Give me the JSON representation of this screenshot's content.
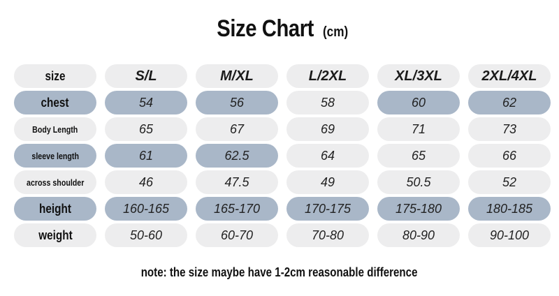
{
  "title": "Size Chart",
  "unit": "(cm)",
  "header": {
    "label": "size",
    "sizes": [
      "S/L",
      "M/XL",
      "L/2XL",
      "XL/3XL",
      "2XL/4XL"
    ]
  },
  "rows": [
    {
      "label": "chest",
      "values": [
        "54",
        "56",
        "58",
        "60",
        "62"
      ]
    },
    {
      "label": "Body Length",
      "values": [
        "65",
        "67",
        "69",
        "71",
        "73"
      ]
    },
    {
      "label": "sleeve length",
      "values": [
        "61",
        "62.5",
        "64",
        "65",
        "66"
      ]
    },
    {
      "label": "across shoulder",
      "values": [
        "46",
        "47.5",
        "49",
        "50.5",
        "52"
      ]
    },
    {
      "label": "height",
      "values": [
        "160-165",
        "165-170",
        "170-175",
        "175-180",
        "180-185"
      ]
    },
    {
      "label": "weight",
      "values": [
        "50-60",
        "60-70",
        "70-80",
        "80-90",
        "90-100"
      ]
    }
  ],
  "note": "note: the size maybe have 1-2cm reasonable difference",
  "colors": {
    "light_cell": "#ededee",
    "blue_cell": "#a9b7c8"
  }
}
